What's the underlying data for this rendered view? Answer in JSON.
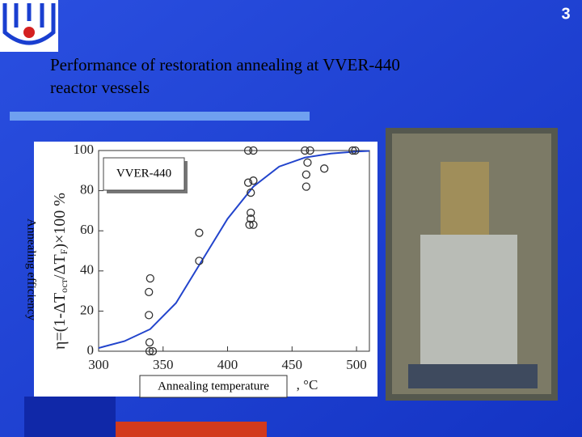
{
  "slide_number": "3",
  "slide_title": [
    "Performance of restoration annealing at VVER-440",
    "reactor vessels"
  ],
  "chart_data": {
    "type": "scatter",
    "y_label": "Annealing efficiency",
    "y_formula": [
      "η=(1-ΔT",
      "ост",
      "/ΔT",
      "F",
      ")×100 %"
    ],
    "x_label": "Annealing temperature",
    "x_unit": ", °C",
    "xlim": [
      300,
      510
    ],
    "ylim": [
      0,
      100
    ],
    "xticks": [
      300,
      350,
      400,
      450,
      500
    ],
    "yticks": [
      0,
      20,
      40,
      60,
      80,
      100
    ],
    "series": [
      {
        "name": "VVER-440",
        "color": "#333333",
        "x": [
          339.5,
          342,
          339.5,
          339,
          339,
          340,
          378,
          378,
          416,
          420,
          416,
          420,
          418,
          418,
          418,
          417,
          420,
          460,
          464,
          462,
          461,
          461,
          475,
          497,
          499
        ],
        "values": [
          0,
          0,
          4.4,
          18,
          29.5,
          36.3,
          59,
          45,
          100,
          100,
          84,
          85,
          79,
          69,
          66,
          63,
          63,
          100,
          100,
          94,
          88,
          82,
          91,
          100,
          100
        ]
      }
    ],
    "fit": {
      "color": "#2244cc",
      "x": [
        300,
        320,
        340,
        360,
        380,
        400,
        420,
        440,
        460,
        480,
        500,
        510
      ],
      "values": [
        1.6,
        5,
        11,
        24,
        45,
        66,
        82,
        92,
        96.5,
        98.5,
        99.5,
        99.8
      ]
    }
  }
}
